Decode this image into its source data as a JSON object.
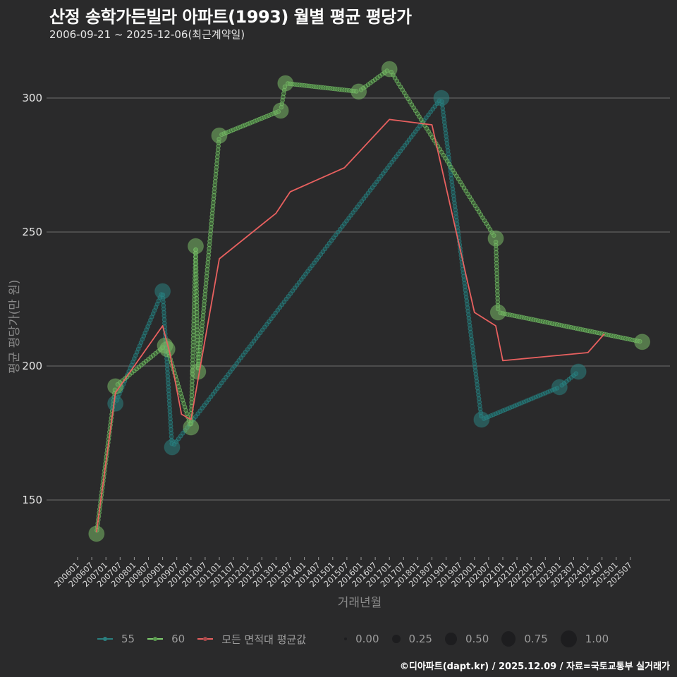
{
  "header": {
    "title": "산정 송학가든빌라 아파트(1993) 월별 평균 평당가",
    "subtitle": "2006-09-21 ~ 2025-12-06(최근계약일)"
  },
  "axes": {
    "ylabel": "평균 평당가(만 원)",
    "xlabel": "거래년월",
    "yticks": [
      "150",
      "200",
      "250",
      "300"
    ],
    "xticks": [
      "200601",
      "200607",
      "200701",
      "200707",
      "200801",
      "200807",
      "200901",
      "200907",
      "201001",
      "201007",
      "201101",
      "201107",
      "201201",
      "201207",
      "201301",
      "201307",
      "201401",
      "201407",
      "201501",
      "201507",
      "201601",
      "201607",
      "201701",
      "201707",
      "201801",
      "201807",
      "201901",
      "201907",
      "202001",
      "202007",
      "202101",
      "202107",
      "202201",
      "202207",
      "202301",
      "202307",
      "202401",
      "202407",
      "202501",
      "202507"
    ]
  },
  "legend": {
    "series": [
      {
        "label": "55",
        "color": "#2a7f7f"
      },
      {
        "label": "60",
        "color": "#7fcf6f"
      },
      {
        "label": "모든 면적대 평균값",
        "color": "#e8605f"
      }
    ],
    "sizes": [
      "0.00",
      "0.25",
      "0.50",
      "0.75",
      "1.00"
    ]
  },
  "footer": "©디아파트(dapt.kr) / 2025.12.09 / 자료=국토교통부 실거래가",
  "chart_data": {
    "type": "line",
    "title": "산정 송학가든빌라 아파트(1993) 월별 평균 평당가",
    "subtitle": "2006-09-21 ~ 2025-12-06(최근계약일)",
    "xlabel": "거래년월",
    "ylabel": "평균 평당가(만 원)",
    "ylim": [
      128,
      316
    ],
    "grid": true,
    "legend_position": "bottom",
    "series": [
      {
        "name": "55",
        "color": "#2a7f7f",
        "points": [
          {
            "x": "200705",
            "y": 186.0
          },
          {
            "x": "200901",
            "y": 227.9
          },
          {
            "x": "200905",
            "y": 169.7
          },
          {
            "x": "201811",
            "y": 300.0
          },
          {
            "x": "202004",
            "y": 180.0
          },
          {
            "x": "202301",
            "y": 192.1
          },
          {
            "x": "202309",
            "y": 197.9
          }
        ]
      },
      {
        "name": "60",
        "color": "#7fcf6f",
        "points": [
          {
            "x": "200609",
            "y": 137.4
          },
          {
            "x": "200705",
            "y": 192.4
          },
          {
            "x": "200902",
            "y": 207.6
          },
          {
            "x": "200903",
            "y": 206.3
          },
          {
            "x": "201001",
            "y": 177.1
          },
          {
            "x": "201003",
            "y": 244.7
          },
          {
            "x": "201004",
            "y": 197.9
          },
          {
            "x": "201101",
            "y": 286.0
          },
          {
            "x": "201303",
            "y": 295.3
          },
          {
            "x": "201305",
            "y": 305.5
          },
          {
            "x": "201512",
            "y": 302.4
          },
          {
            "x": "201701",
            "y": 310.8
          },
          {
            "x": "202010",
            "y": 247.6
          },
          {
            "x": "202011",
            "y": 220.0
          },
          {
            "x": "202512",
            "y": 209.0
          }
        ]
      },
      {
        "name": "모든 면적대 평균값",
        "color": "#e8605f",
        "points": [
          {
            "x": "200609",
            "y": 138
          },
          {
            "x": "200705",
            "y": 190
          },
          {
            "x": "200901",
            "y": 215
          },
          {
            "x": "200904",
            "y": 205
          },
          {
            "x": "200909",
            "y": 182
          },
          {
            "x": "201001",
            "y": 180
          },
          {
            "x": "201004",
            "y": 195
          },
          {
            "x": "201101",
            "y": 240
          },
          {
            "x": "201301",
            "y": 257
          },
          {
            "x": "201307",
            "y": 265
          },
          {
            "x": "201506",
            "y": 274
          },
          {
            "x": "201701",
            "y": 292
          },
          {
            "x": "201807",
            "y": 290
          },
          {
            "x": "202001",
            "y": 220
          },
          {
            "x": "202010",
            "y": 215
          },
          {
            "x": "202101",
            "y": 202
          },
          {
            "x": "202401",
            "y": 205
          },
          {
            "x": "202408",
            "y": 212
          }
        ]
      }
    ]
  }
}
